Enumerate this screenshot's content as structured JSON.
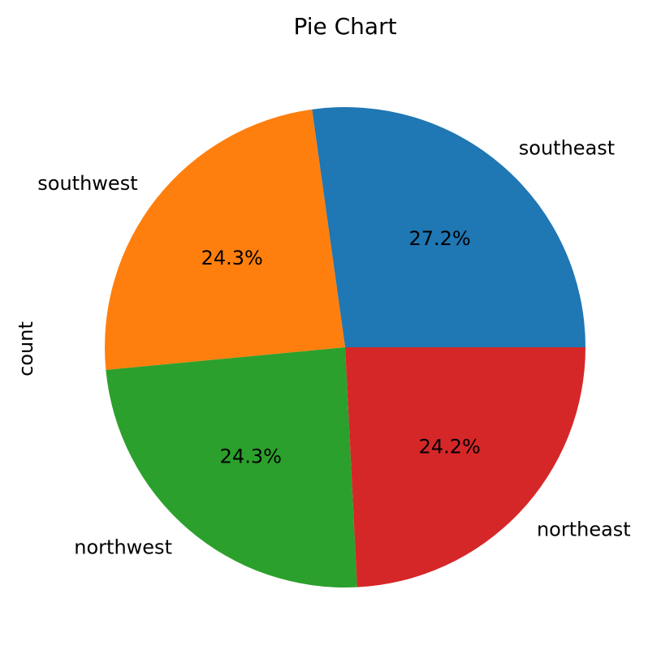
{
  "chart_data": {
    "type": "pie",
    "title": "Pie Chart",
    "ylabel": "count",
    "start_angle_deg": 0,
    "direction": "counterclockwise",
    "slices": [
      {
        "label": "southeast",
        "value": 27.2,
        "pct_label": "27.2%",
        "color": "#1f77b4"
      },
      {
        "label": "southwest",
        "value": 24.3,
        "pct_label": "24.3%",
        "color": "#ff7f0e"
      },
      {
        "label": "northwest",
        "value": 24.3,
        "pct_label": "24.3%",
        "color": "#2ca02c"
      },
      {
        "label": "northeast",
        "value": 24.2,
        "pct_label": "24.2%",
        "color": "#d62728"
      }
    ]
  }
}
